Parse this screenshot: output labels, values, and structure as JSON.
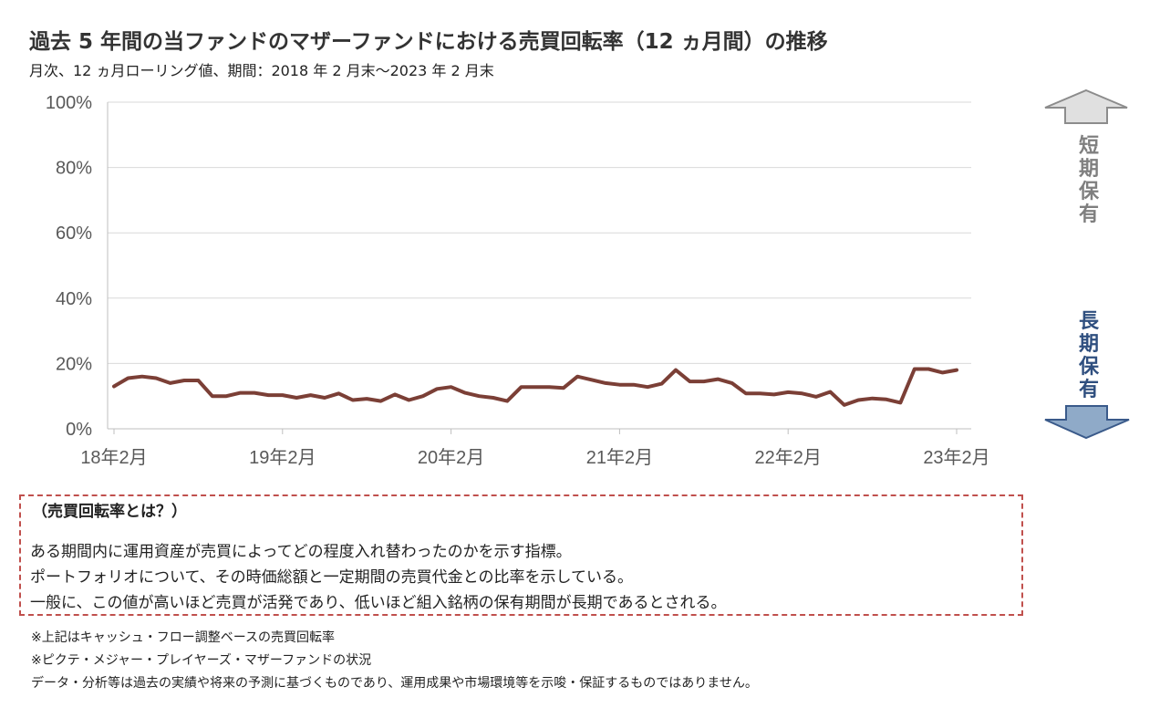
{
  "header": {
    "title": "過去 5 年間の当ファンドのマザーファンドにおける売買回転率（12 ヵ月間）の推移",
    "subtitle": "月次、12 ヵ月ローリング値、期間：2018 年 2 月末～2023 年 2 月末"
  },
  "side_labels": {
    "short_term": "短期保有",
    "long_term": "長期保有"
  },
  "chart_data": {
    "type": "line",
    "title": "過去 5 年間の当ファンドのマザーファンドにおける売買回転率（12 ヵ月間）の推移",
    "xlabel": "",
    "ylabel": "",
    "ylim": [
      0,
      100
    ],
    "yticks": [
      "0%",
      "20%",
      "40%",
      "60%",
      "80%",
      "100%"
    ],
    "xticks": [
      "18年2月",
      "19年2月",
      "20年2月",
      "21年2月",
      "22年2月",
      "23年2月"
    ],
    "grid": true,
    "line_color": "#7b3f36",
    "x": [
      "2018-02",
      "2018-03",
      "2018-04",
      "2018-05",
      "2018-06",
      "2018-07",
      "2018-08",
      "2018-09",
      "2018-10",
      "2018-11",
      "2018-12",
      "2019-01",
      "2019-02",
      "2019-03",
      "2019-04",
      "2019-05",
      "2019-06",
      "2019-07",
      "2019-08",
      "2019-09",
      "2019-10",
      "2019-11",
      "2019-12",
      "2020-01",
      "2020-02",
      "2020-03",
      "2020-04",
      "2020-05",
      "2020-06",
      "2020-07",
      "2020-08",
      "2020-09",
      "2020-10",
      "2020-11",
      "2020-12",
      "2021-01",
      "2021-02",
      "2021-03",
      "2021-04",
      "2021-05",
      "2021-06",
      "2021-07",
      "2021-08",
      "2021-09",
      "2021-10",
      "2021-11",
      "2021-12",
      "2022-01",
      "2022-02",
      "2022-03",
      "2022-04",
      "2022-05",
      "2022-06",
      "2022-07",
      "2022-08",
      "2022-09",
      "2022-10",
      "2022-11",
      "2022-12",
      "2023-01",
      "2023-02"
    ],
    "series": [
      {
        "values": [
          13,
          15.5,
          16,
          15.5,
          14,
          14.8,
          14.8,
          10,
          10,
          11,
          11,
          10.3,
          10.3,
          9.5,
          10.3,
          9.5,
          10.8,
          8.8,
          9.2,
          8.5,
          10.5,
          8.8,
          10,
          12.2,
          12.8,
          11,
          10,
          9.5,
          8.5,
          12.8,
          12.8,
          12.8,
          12.5,
          16,
          15,
          14,
          13.5,
          13.5,
          12.8,
          13.8,
          18,
          14.5,
          14.5,
          15.2,
          14,
          10.8,
          10.8,
          10.5,
          11.2,
          10.8,
          9.8,
          11.3,
          7.3,
          8.8,
          9.3,
          9,
          8,
          18.3,
          18.3,
          17.2,
          18
        ]
      }
    ]
  },
  "definition": {
    "heading": "（売買回転率とは？）",
    "lines": [
      "ある期間内に運用資産が売買によってどの程度入れ替わったのかを示す指標。",
      "ポートフォリオについて、その時価総額と一定期間の売買代金との比率を示している。",
      "一般に、この値が高いほど売買が活発であり、低いほど組入銘柄の保有期間が長期であるとされる。"
    ]
  },
  "notes": [
    "※上記はキャッシュ・フロー調整ベースの売買回転率",
    "※ピクテ・メジャー・プレイヤーズ・マザーファンドの状況",
    "データ・分析等は過去の実績や将来の予測に基づくものであり、運用成果や市場環境等を示唆・保証するものではありません。"
  ]
}
